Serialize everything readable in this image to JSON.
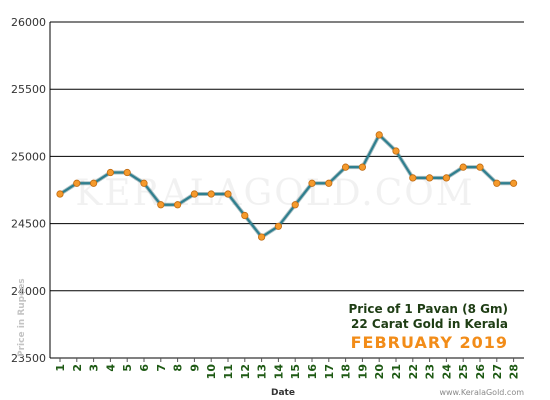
{
  "colors": {
    "line": "#2f7f8f",
    "marker": "#f59a2c",
    "marker_stroke": "#c06a10",
    "title": "#1e3d14",
    "month": "#f28c18",
    "xtick": "#1e5a14",
    "grid": "#000000"
  },
  "watermark": "KERALAGOLD.COM",
  "site_text": "www.KeralaGold.com",
  "chart_data": {
    "type": "line",
    "title": "Price of 1 Pavan (8 Gm)",
    "subtitle": "22 Carat Gold in Kerala",
    "period": "FEBRUARY 2019",
    "xlabel": "Date",
    "ylabel": "Price in Rupees",
    "ylim": [
      23500,
      26000
    ],
    "yticks": [
      23500,
      24000,
      24500,
      25000,
      25500,
      26000
    ],
    "grid": true,
    "x": [
      1,
      2,
      3,
      4,
      5,
      6,
      7,
      8,
      9,
      10,
      11,
      12,
      13,
      14,
      15,
      16,
      17,
      18,
      19,
      20,
      21,
      22,
      23,
      24,
      25,
      26,
      27,
      28
    ],
    "series": [
      {
        "values": [
          24720,
          24800,
          24800,
          24880,
          24880,
          24800,
          24640,
          24640,
          24720,
          24720,
          24720,
          24560,
          24400,
          24480,
          24640,
          24800,
          24800,
          24920,
          24920,
          25160,
          25040,
          24840,
          24840,
          24840,
          24920,
          24920,
          24800,
          24800
        ]
      }
    ]
  }
}
